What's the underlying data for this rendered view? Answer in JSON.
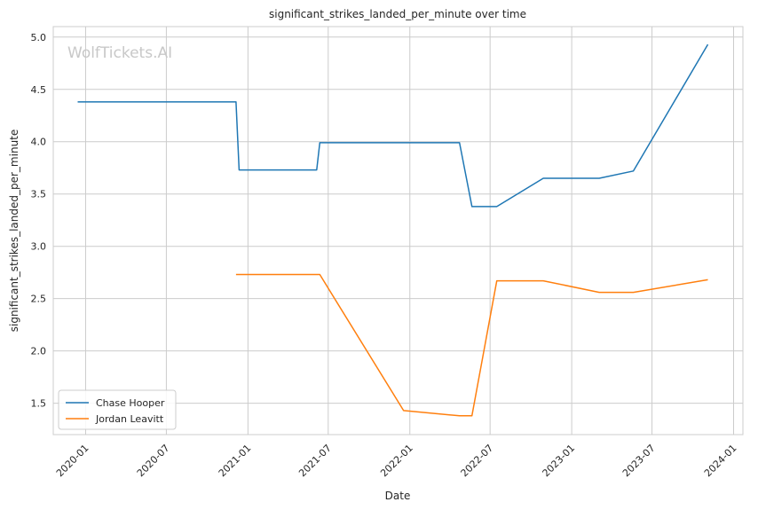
{
  "watermark": "WolfTickets.AI",
  "chart_data": {
    "type": "line",
    "title": "significant_strikes_landed_per_minute over time",
    "xlabel": "Date",
    "ylabel": "significant_strikes_landed_per_minute",
    "x_type": "date",
    "xlim": [
      "2019-10-20",
      "2024-01-22"
    ],
    "ylim": [
      1.2,
      5.1
    ],
    "x_ticks": [
      "2020-01-01",
      "2020-07-01",
      "2021-01-01",
      "2021-07-01",
      "2022-01-01",
      "2022-07-01",
      "2023-01-01",
      "2023-07-01",
      "2024-01-01"
    ],
    "x_tick_labels": [
      "2020-01",
      "2020-07",
      "2021-01",
      "2021-07",
      "2022-01",
      "2022-07",
      "2023-01",
      "2023-07",
      "2024-01"
    ],
    "y_ticks": [
      1.5,
      2.0,
      2.5,
      3.0,
      3.5,
      4.0,
      4.5,
      5.0
    ],
    "y_tick_labels": [
      "1.5",
      "2.0",
      "2.5",
      "3.0",
      "3.5",
      "4.0",
      "4.5",
      "5.0"
    ],
    "grid": true,
    "legend_position": "lower-left",
    "series": [
      {
        "name": "Chase Hooper",
        "color": "#1f77b4",
        "points": [
          {
            "x": "2019-12-14",
            "y": 4.38
          },
          {
            "x": "2020-12-05",
            "y": 4.38
          },
          {
            "x": "2020-12-12",
            "y": 3.73
          },
          {
            "x": "2021-06-05",
            "y": 3.73
          },
          {
            "x": "2021-06-12",
            "y": 3.99
          },
          {
            "x": "2022-04-23",
            "y": 3.99
          },
          {
            "x": "2022-05-21",
            "y": 3.38
          },
          {
            "x": "2022-07-16",
            "y": 3.38
          },
          {
            "x": "2022-10-29",
            "y": 3.65
          },
          {
            "x": "2023-03-04",
            "y": 3.65
          },
          {
            "x": "2023-05-20",
            "y": 3.72
          },
          {
            "x": "2023-11-04",
            "y": 4.93
          }
        ]
      },
      {
        "name": "Jordan Leavitt",
        "color": "#ff7f0e",
        "points": [
          {
            "x": "2020-12-05",
            "y": 2.73
          },
          {
            "x": "2021-06-12",
            "y": 2.73
          },
          {
            "x": "2021-12-18",
            "y": 1.43
          },
          {
            "x": "2022-04-23",
            "y": 1.38
          },
          {
            "x": "2022-05-21",
            "y": 1.38
          },
          {
            "x": "2022-07-16",
            "y": 2.67
          },
          {
            "x": "2022-10-29",
            "y": 2.67
          },
          {
            "x": "2023-03-04",
            "y": 2.56
          },
          {
            "x": "2023-05-20",
            "y": 2.56
          },
          {
            "x": "2023-11-04",
            "y": 2.68
          }
        ]
      }
    ]
  }
}
